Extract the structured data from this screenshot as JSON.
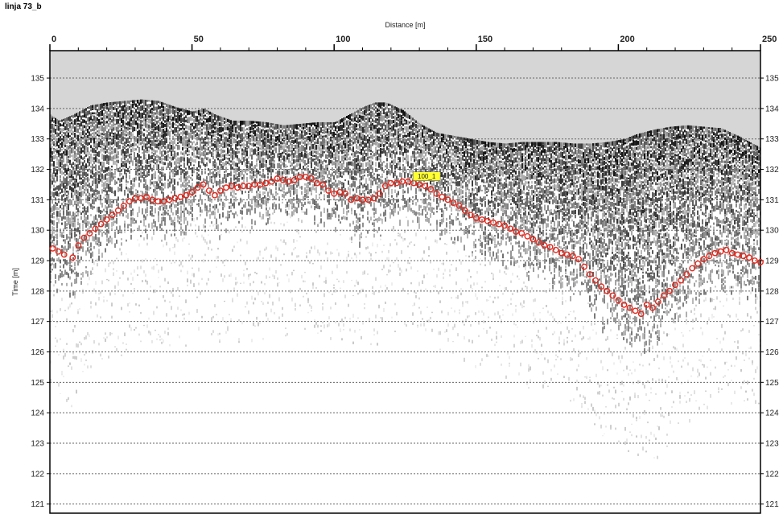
{
  "window": {
    "title": "linja 73_b"
  },
  "colors": {
    "air_band": "#d6d6d6",
    "pick_marker": "#e8261a",
    "label_bg": "#ffff33",
    "grid": "#666666"
  },
  "chart_data": {
    "type": "scatter",
    "title": "",
    "xlabel": "Distance [m]",
    "ylabel": "Time [m]",
    "xlim": [
      0,
      250
    ],
    "ylim": [
      120.7,
      135.9
    ],
    "x_ticks": [
      "0",
      "50",
      "100",
      "150",
      "200",
      "250"
    ],
    "y_ticks": [
      "135",
      "134",
      "133",
      "132",
      "131",
      "130",
      "129",
      "128",
      "127",
      "126",
      "125",
      "124",
      "123",
      "122",
      "121"
    ],
    "grid": "horizontal dashed",
    "right_axis_labels": true,
    "background": "GPR radargram (grayscale reflections)",
    "surface_profile": {
      "x": [
        0,
        3,
        8,
        14,
        20,
        26,
        32,
        38,
        44,
        50,
        54,
        58,
        64,
        70,
        76,
        82,
        88,
        94,
        100,
        106,
        110,
        114,
        118,
        124,
        130,
        136,
        142,
        148,
        154,
        160,
        166,
        172,
        178,
        184,
        190,
        196,
        202,
        206,
        212,
        218,
        224,
        230,
        236,
        242,
        246,
        250
      ],
      "y": [
        133.8,
        133.6,
        133.8,
        134.1,
        134.2,
        134.25,
        134.3,
        134.25,
        134.05,
        133.9,
        134.0,
        133.8,
        133.6,
        133.6,
        133.55,
        133.45,
        133.5,
        133.55,
        133.55,
        133.85,
        134.05,
        134.2,
        134.2,
        133.95,
        133.5,
        133.2,
        133.1,
        133.0,
        132.9,
        132.85,
        132.9,
        132.9,
        132.9,
        132.85,
        132.85,
        132.9,
        133.0,
        133.15,
        133.3,
        133.4,
        133.45,
        133.4,
        133.35,
        133.1,
        132.9,
        132.7
      ]
    },
    "series": [
      {
        "label": "100_1",
        "marker": "open-circle",
        "x": [
          1,
          3,
          5,
          8,
          10,
          12,
          14,
          16,
          18,
          20,
          22,
          24,
          26,
          28,
          30,
          32,
          34,
          36,
          38,
          40,
          42,
          44,
          46,
          48,
          50,
          52,
          54,
          56,
          58,
          60,
          62,
          64,
          66,
          68,
          70,
          72,
          74,
          76,
          78,
          80,
          82,
          84,
          86,
          88,
          90,
          92,
          94,
          96,
          98,
          100,
          102,
          104,
          106,
          108,
          110,
          112,
          114,
          116,
          118,
          120,
          122,
          124,
          126,
          128,
          130,
          132,
          134,
          136,
          138,
          140,
          142,
          144,
          146,
          148,
          150,
          152,
          154,
          156,
          158,
          160,
          162,
          164,
          166,
          168,
          170,
          172,
          174,
          176,
          178,
          180,
          182,
          184,
          186,
          188,
          190,
          192,
          194,
          196,
          198,
          200,
          202,
          204,
          206,
          208,
          210,
          212,
          214,
          216,
          218,
          220,
          222,
          224,
          226,
          228,
          230,
          232,
          234,
          236,
          238,
          240,
          242,
          244,
          246,
          248,
          250
        ],
        "y": [
          129.4,
          129.3,
          129.2,
          129.1,
          129.5,
          129.75,
          129.9,
          130.05,
          130.2,
          130.35,
          130.5,
          130.65,
          130.8,
          130.95,
          131.05,
          131.05,
          131.1,
          131.0,
          130.95,
          130.95,
          131.0,
          131.05,
          131.1,
          131.15,
          131.25,
          131.4,
          131.5,
          131.3,
          131.15,
          131.3,
          131.4,
          131.45,
          131.4,
          131.45,
          131.45,
          131.5,
          131.5,
          131.55,
          131.6,
          131.7,
          131.65,
          131.6,
          131.65,
          131.75,
          131.75,
          131.7,
          131.55,
          131.5,
          131.3,
          131.2,
          131.25,
          131.2,
          131.0,
          131.05,
          131.0,
          131.0,
          131.05,
          131.2,
          131.45,
          131.55,
          131.55,
          131.6,
          131.6,
          131.55,
          131.5,
          131.45,
          131.35,
          131.2,
          131.1,
          131.0,
          130.9,
          130.8,
          130.65,
          130.5,
          130.4,
          130.35,
          130.3,
          130.25,
          130.2,
          130.15,
          130.05,
          129.95,
          129.9,
          129.8,
          129.7,
          129.6,
          129.5,
          129.45,
          129.35,
          129.25,
          129.2,
          129.15,
          129.05,
          128.8,
          128.55,
          128.35,
          128.15,
          128.0,
          127.85,
          127.7,
          127.55,
          127.45,
          127.35,
          127.25,
          127.55,
          127.45,
          127.65,
          127.85,
          128.0,
          128.2,
          128.35,
          128.55,
          128.75,
          128.9,
          129.05,
          129.15,
          129.25,
          129.3,
          129.35,
          129.25,
          129.2,
          129.15,
          129.1,
          129.0,
          128.95
        ]
      }
    ],
    "annotations": [
      {
        "text": "100_1",
        "x": 130,
        "y": 131.6
      }
    ]
  }
}
